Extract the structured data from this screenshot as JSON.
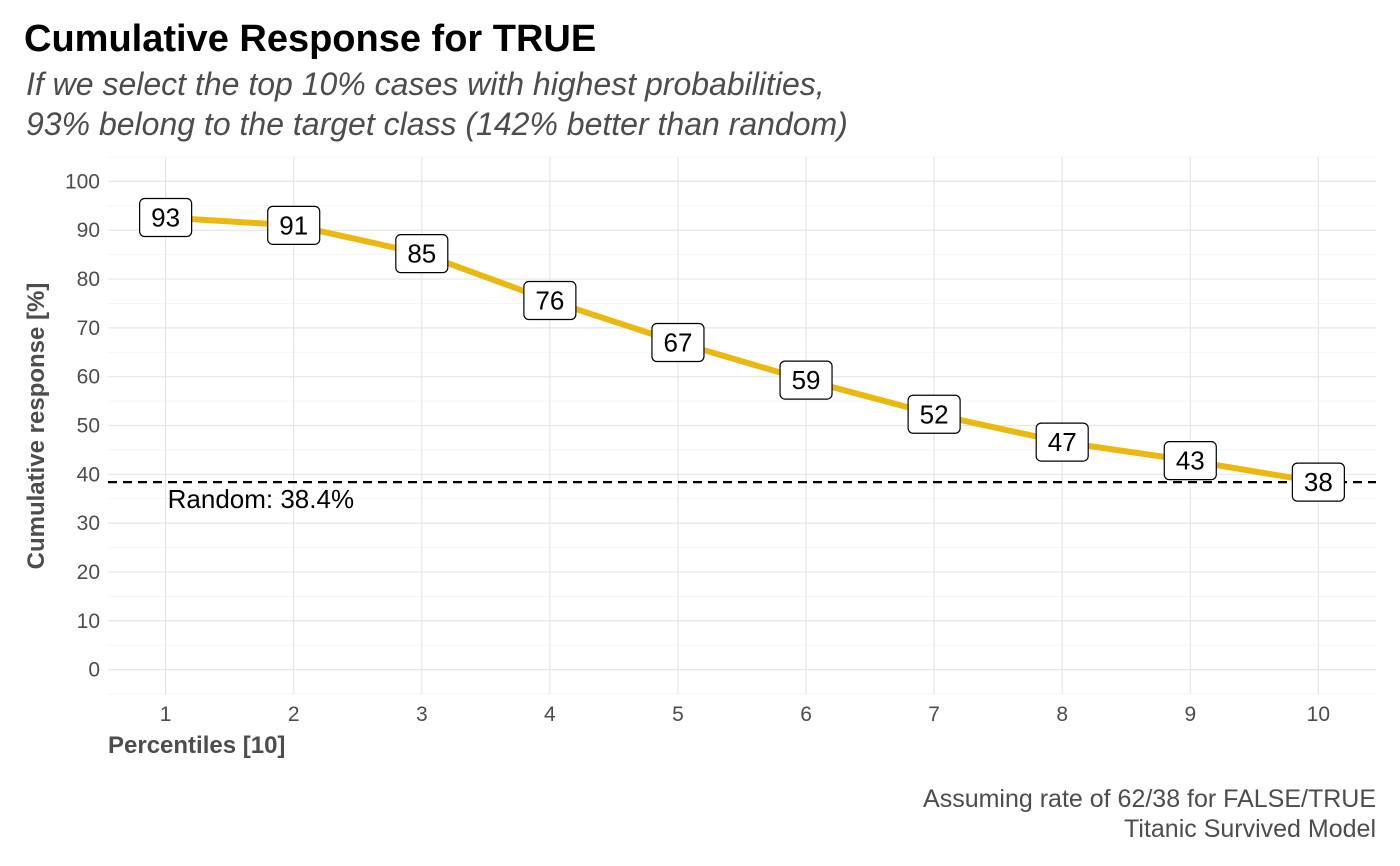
{
  "title": "Cumulative Response for TRUE",
  "subtitle": [
    "If we select the top 10% cases with highest probabilities,",
    "93% belong to the target class (142% better than random)"
  ],
  "caption": [
    "Assuming rate of 62/38 for FALSE/TRUE",
    "Titanic Survived Model"
  ],
  "chart_data": {
    "type": "line",
    "x": [
      1,
      2,
      3,
      4,
      5,
      6,
      7,
      8,
      9,
      10
    ],
    "series": [
      {
        "values": [
          92.6,
          91.0,
          85.2,
          75.6,
          67.0,
          59.3,
          52.3,
          46.6,
          42.8,
          38.4
        ],
        "labels": [
          "93",
          "91",
          "85",
          "76",
          "67",
          "59",
          "52",
          "47",
          "43",
          "38"
        ],
        "color": "#EBB811"
      }
    ],
    "reference_line": {
      "value": 38.4,
      "label": "Random: 38.4%",
      "color": "#000000",
      "style": "dashed"
    },
    "xlabel": "Percentiles [10]",
    "ylabel": "Cumulative response [%]",
    "xlim": [
      0.55,
      10.45
    ],
    "ylim": [
      -5,
      105
    ],
    "x_ticks": [
      "1",
      "2",
      "3",
      "4",
      "5",
      "6",
      "7",
      "8",
      "9",
      "10"
    ],
    "y_ticks": [
      "0",
      "10",
      "20",
      "30",
      "40",
      "50",
      "60",
      "70",
      "80",
      "90",
      "100"
    ],
    "grid": true,
    "legend": "none"
  }
}
